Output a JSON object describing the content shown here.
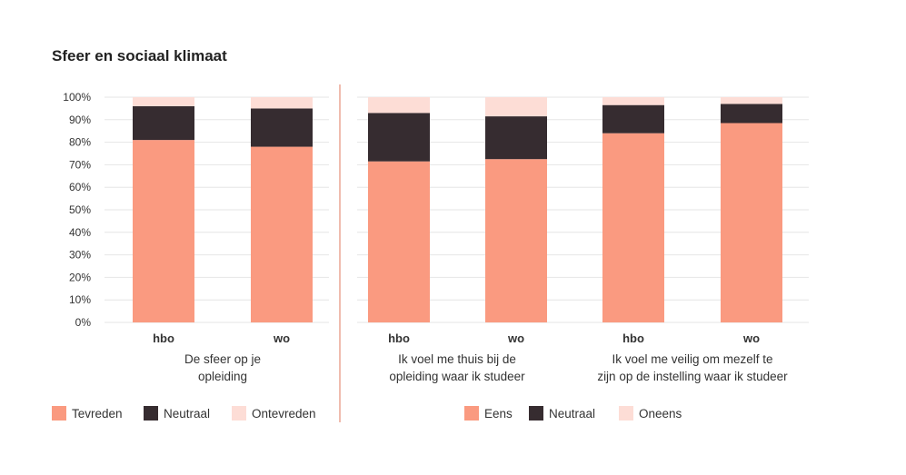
{
  "title": "Sfeer en sociaal klimaat",
  "colors": {
    "positive": "#FA9A80",
    "neutral": "#362C30",
    "negative": "#FDDDD6",
    "divider": "#E07A5F",
    "grid": "#E6E6E6",
    "text": "#333333"
  },
  "y_ticks": [
    "0%",
    "10%",
    "20%",
    "30%",
    "40%",
    "50%",
    "60%",
    "70%",
    "80%",
    "90%",
    "100%"
  ],
  "chart_data": [
    {
      "type": "bar",
      "stacked": true,
      "ylim": [
        0,
        100
      ],
      "grid": true,
      "legend_position": "bottom",
      "categories": [
        "hbo",
        "wo"
      ],
      "groups": [
        {
          "label": "De sfeer op je\nopleiding",
          "categories": [
            "hbo",
            "wo"
          ]
        }
      ],
      "series": [
        {
          "name": "Tevreden",
          "values": [
            81,
            78
          ]
        },
        {
          "name": "Neutraal",
          "values": [
            15,
            17
          ]
        },
        {
          "name": "Ontevreden",
          "values": [
            4,
            5
          ]
        }
      ]
    },
    {
      "type": "bar",
      "stacked": true,
      "ylim": [
        0,
        100
      ],
      "grid": true,
      "legend_position": "bottom",
      "categories": [
        "hbo",
        "wo",
        "hbo",
        "wo"
      ],
      "groups": [
        {
          "label": "Ik voel me thuis bij de\nopleiding waar ik studeer",
          "categories": [
            "hbo",
            "wo"
          ]
        },
        {
          "label": "Ik voel me veilig om mezelf te\nzijn op de instelling waar ik studeer",
          "categories": [
            "hbo",
            "wo"
          ]
        }
      ],
      "series": [
        {
          "name": "Eens",
          "values": [
            71.5,
            72.5,
            84,
            88.5
          ]
        },
        {
          "name": "Neutraal",
          "values": [
            21.5,
            19,
            12.5,
            8.5
          ]
        },
        {
          "name": "Oneens",
          "values": [
            7,
            8.5,
            3.5,
            3
          ]
        }
      ]
    }
  ]
}
